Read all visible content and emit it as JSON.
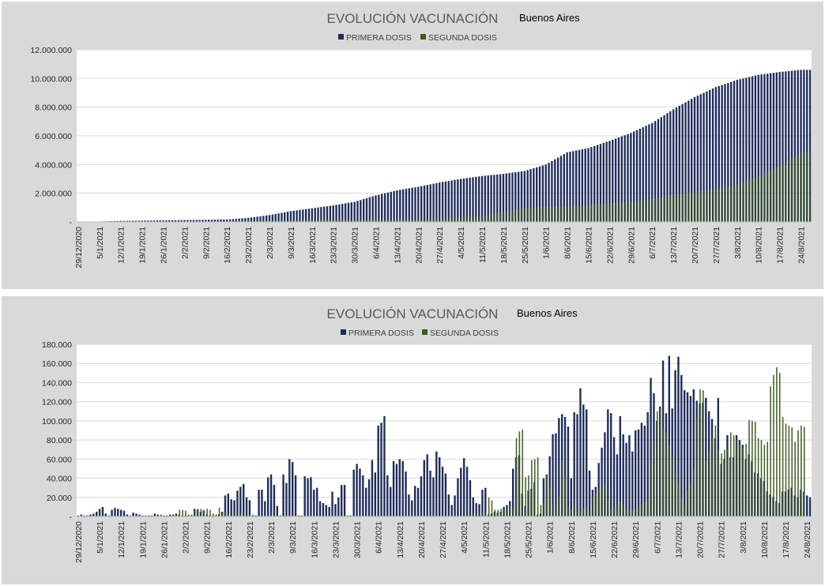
{
  "colors": {
    "primera": "#1f2d5a",
    "segunda": "#3d5a1e",
    "panel_bg": "#d9d9d9",
    "plot_bg": "#ffffff",
    "grid": "#d9d9d9"
  },
  "date_labels": [
    "29/12/2020",
    "5/1/2021",
    "12/1/2021",
    "19/1/2021",
    "26/1/2021",
    "2/2/2021",
    "9/2/2021",
    "16/2/2021",
    "23/2/2021",
    "2/3/2021",
    "9/3/2021",
    "16/3/2021",
    "23/3/2021",
    "30/3/2021",
    "6/4/2021",
    "13/4/2021",
    "20/4/2021",
    "27/4/2021",
    "4/5/2021",
    "11/5/2021",
    "18/5/2021",
    "25/5/2021",
    "1/6/2021",
    "8/6/2021",
    "15/6/2021",
    "22/6/2021",
    "29/6/2021",
    "6/7/2021",
    "13/7/2021",
    "20/7/2021",
    "27/7/2021",
    "3/8/2021",
    "10/8/2021",
    "17/8/2021",
    "24/8/2021"
  ],
  "chart_data": [
    {
      "type": "bar",
      "title": "EVOLUCIÓN VACUNACIÓN",
      "subtitle": "Buenos Aires",
      "legend": [
        "PRIMERA DOSIS",
        "SEGUNDA DOSIS"
      ],
      "legend_position": "top",
      "ylim": [
        0,
        12000000
      ],
      "yticks": [
        "-",
        "2.000.000",
        "4.000.000",
        "6.000.000",
        "8.000.000",
        "10.000.000",
        "12.000.000"
      ],
      "grid": true,
      "weekly_x": [
        "29/12/2020",
        "5/1/2021",
        "12/1/2021",
        "19/1/2021",
        "26/1/2021",
        "2/2/2021",
        "9/2/2021",
        "16/2/2021",
        "23/2/2021",
        "2/3/2021",
        "9/3/2021",
        "16/3/2021",
        "23/3/2021",
        "30/3/2021",
        "6/4/2021",
        "13/4/2021",
        "20/4/2021",
        "27/4/2021",
        "4/5/2021",
        "11/5/2021",
        "18/5/2021",
        "25/5/2021",
        "1/6/2021",
        "8/6/2021",
        "15/6/2021",
        "22/6/2021",
        "29/6/2021",
        "6/7/2021",
        "13/7/2021",
        "20/7/2021",
        "27/7/2021",
        "3/8/2021",
        "10/8/2021",
        "17/8/2021",
        "24/8/2021"
      ],
      "series": [
        {
          "name": "PRIMERA DOSIS",
          "weekly_values": [
            5000,
            30000,
            70000,
            90000,
            110000,
            130000,
            150000,
            170000,
            280000,
            480000,
            750000,
            950000,
            1150000,
            1400000,
            1850000,
            2200000,
            2450000,
            2750000,
            3000000,
            3200000,
            3350000,
            3550000,
            4000000,
            4850000,
            5150000,
            5650000,
            6200000,
            6900000,
            7850000,
            8700000,
            9400000,
            9900000,
            10250000,
            10450000,
            10600000
          ]
        },
        {
          "name": "SEGUNDA DOSIS",
          "weekly_values": [
            0,
            5000,
            10000,
            12000,
            15000,
            20000,
            30000,
            50000,
            80000,
            100000,
            130000,
            150000,
            170000,
            180000,
            190000,
            200000,
            220000,
            260000,
            330000,
            420000,
            700000,
            950000,
            1050000,
            1100000,
            1200000,
            1300000,
            1420000,
            1600000,
            1900000,
            2100000,
            2300000,
            2600000,
            3200000,
            3900000,
            4850000
          ]
        }
      ]
    },
    {
      "type": "bar",
      "title": "EVOLUCIÓN VACUNACIÓN",
      "subtitle": "Buenos Aires",
      "legend": [
        "PRIMERA DOSIS",
        "SEGUNDA DOSIS"
      ],
      "legend_position": "top",
      "ylim": [
        0,
        180000
      ],
      "yticks": [
        "-",
        "20.000",
        "40.000",
        "60.000",
        "80.000",
        "100.000",
        "120.000",
        "140.000",
        "160.000",
        "180.000"
      ],
      "grid": true,
      "x_start": "29/12/2020",
      "x_end": "27/8/2021",
      "series": [
        {
          "name": "PRIMERA DOSIS",
          "daily_values": [
            1000,
            2000,
            1000,
            1000,
            2000,
            3000,
            5000,
            8000,
            10000,
            3000,
            1000,
            7000,
            9000,
            8000,
            7000,
            6000,
            2000,
            1000,
            4000,
            3000,
            2000,
            1000,
            1000,
            1000,
            1000,
            3000,
            2000,
            1000,
            1000,
            1000,
            2000,
            2000,
            3000,
            2000,
            1000,
            1000,
            1000,
            1000,
            8000,
            7000,
            5000,
            6000,
            2000,
            1000,
            1000,
            1000,
            2000,
            5000,
            22000,
            24000,
            18000,
            17000,
            27000,
            31000,
            34000,
            20000,
            17000,
            1000,
            1000,
            28000,
            28000,
            16000,
            41000,
            44000,
            33000,
            11000,
            1000,
            44000,
            35000,
            60000,
            57000,
            43000,
            1000,
            1000,
            42000,
            40000,
            41000,
            28000,
            30000,
            16000,
            14000,
            12000,
            10000,
            26000,
            13000,
            20000,
            33000,
            33000,
            1000,
            1000,
            49000,
            55000,
            50000,
            43000,
            30000,
            39000,
            59000,
            46000,
            95000,
            98000,
            105000,
            43000,
            31000,
            58000,
            55000,
            60000,
            58000,
            47000,
            23000,
            17000,
            32000,
            30000,
            42000,
            59000,
            65000,
            48000,
            41000,
            68000,
            62000,
            52000,
            45000,
            23000,
            12000,
            22000,
            40000,
            51000,
            61000,
            52000,
            38000,
            20000,
            14000,
            13000,
            28000,
            30000,
            2000,
            3000,
            5000,
            4000,
            5000,
            10000,
            12000,
            16000,
            50000,
            62000,
            64000,
            24000,
            11000,
            27000,
            29000,
            36000,
            2000,
            3000,
            40000,
            44000,
            63000,
            86000,
            87000,
            103000,
            107000,
            104000,
            94000,
            40000,
            109000,
            107000,
            134000,
            117000,
            112000,
            48000,
            28000,
            31000,
            56000,
            72000,
            88000,
            112000,
            108000,
            83000,
            65000,
            105000,
            86000,
            77000,
            85000,
            68000,
            90000,
            91000,
            98000,
            95000,
            109000,
            145000,
            129000,
            100000,
            115000,
            163000,
            108000,
            168000,
            113000,
            153000,
            167000,
            148000,
            132000,
            130000,
            126000,
            133000,
            121000,
            118000,
            119000,
            124000,
            110000,
            102000,
            82000,
            124000,
            55000,
            60000,
            85000,
            62000,
            62000,
            85000,
            80000,
            75000,
            60000,
            65000,
            58000,
            46000,
            45000,
            40000,
            37000,
            26000,
            23000,
            20000,
            16000,
            14000,
            26000,
            26000,
            28000,
            30000,
            22000,
            20000,
            28000,
            26000,
            22000,
            20000
          ]
        },
        {
          "name": "SEGUNDA DOSIS",
          "daily_values": [
            0,
            0,
            0,
            0,
            0,
            0,
            0,
            0,
            0,
            0,
            0,
            0,
            0,
            0,
            0,
            0,
            0,
            0,
            0,
            0,
            0,
            0,
            0,
            0,
            1000,
            1000,
            1000,
            2000,
            1000,
            1000,
            2000,
            1000,
            2000,
            7000,
            7000,
            6000,
            2000,
            2000,
            8000,
            8000,
            8000,
            7000,
            8000,
            7000,
            3000,
            2000,
            9000,
            4000,
            5000,
            3000,
            2000,
            3000,
            2000,
            3000,
            2000,
            2000,
            2000,
            2000,
            1000,
            1000,
            1000,
            1000,
            1000,
            1000,
            1000,
            1000,
            1000,
            1000,
            1000,
            1000,
            1000,
            1000,
            1000,
            1000,
            1000,
            1000,
            1000,
            1000,
            1000,
            1000,
            1000,
            1000,
            1000,
            1000,
            1000,
            1000,
            1000,
            1000,
            1000,
            1000,
            1000,
            1000,
            1000,
            1000,
            1000,
            1000,
            1000,
            1000,
            1000,
            1000,
            1000,
            1000,
            1000,
            1000,
            1000,
            1000,
            1000,
            1000,
            1000,
            1000,
            1000,
            1000,
            1000,
            1000,
            1000,
            1000,
            1000,
            1000,
            1000,
            1000,
            1000,
            1000,
            1000,
            1000,
            1000,
            1000,
            1000,
            2000,
            2000,
            3000,
            3000,
            4000,
            4000,
            5000,
            20000,
            17000,
            7000,
            7000,
            8000,
            8000,
            9000,
            12000,
            10000,
            82000,
            89000,
            91000,
            41000,
            43000,
            59000,
            60000,
            62000,
            12000,
            14000,
            43000,
            30000,
            13000,
            13000,
            21000,
            60000,
            42000,
            10000,
            8000,
            14000,
            8000,
            6000,
            9000,
            10000,
            6000,
            22000,
            25000,
            28000,
            32000,
            34000,
            17000,
            8000,
            10000,
            12000,
            15000,
            13000,
            8000,
            6000,
            7000,
            8000,
            10000,
            12000,
            15000,
            17000,
            58000,
            80000,
            110000,
            113000,
            92000,
            88000,
            75000,
            62000,
            45000,
            35000,
            20000,
            12000,
            28000,
            36000,
            50000,
            104000,
            133000,
            132000,
            58000,
            70000,
            82000,
            95000,
            70000,
            66000,
            70000,
            70000,
            88000,
            85000,
            80000,
            75000,
            72000,
            76000,
            101000,
            100000,
            99000,
            82000,
            80000,
            75000,
            78000,
            136000,
            148000,
            156000,
            150000,
            104000,
            97000,
            95000,
            93000,
            78000,
            90000,
            95000,
            94000
          ]
        }
      ]
    }
  ]
}
